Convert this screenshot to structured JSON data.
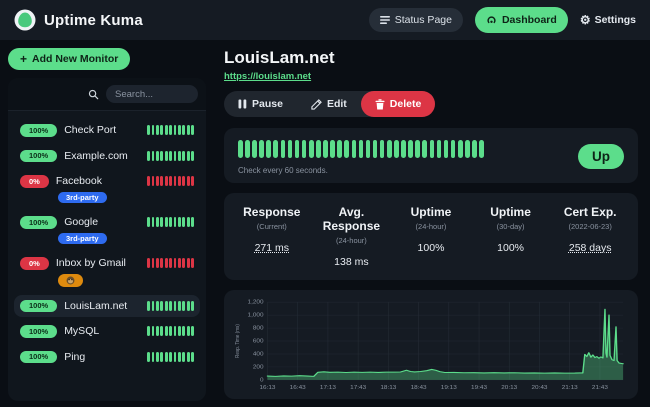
{
  "colors": {
    "green": "#5cdd8b",
    "red": "#dc3545",
    "blue": "#2e6bf0",
    "orange": "#de8a0e",
    "badge_dark_text": "#0e2417",
    "grid": "#242b35",
    "axis_text": "#8a93a0"
  },
  "topbar": {
    "app_name": "Uptime Kuma",
    "status_page_label": "Status Page",
    "dashboard_label": "Dashboard",
    "settings_label": "Settings"
  },
  "sidebar": {
    "add_monitor_label": "Add New Monitor",
    "search_placeholder": "Search...",
    "mini_beat_count": 11,
    "monitors": [
      {
        "name": "Check Port",
        "uptime": "100%",
        "status": "up",
        "tags": [],
        "selected": false
      },
      {
        "name": "Example.com",
        "uptime": "100%",
        "status": "up",
        "tags": [],
        "selected": false
      },
      {
        "name": "Facebook",
        "uptime": "0%",
        "status": "down",
        "tags": [
          {
            "label": "3rd-party",
            "color": "blue"
          }
        ],
        "selected": false
      },
      {
        "name": "Google",
        "uptime": "100%",
        "status": "up",
        "tags": [
          {
            "label": "3rd-party",
            "color": "blue"
          }
        ],
        "selected": false
      },
      {
        "name": "Inbox by Gmail",
        "uptime": "0%",
        "status": "down",
        "tags": [
          {
            "label": "",
            "icon": "monkey-emoji",
            "color": "orange"
          }
        ],
        "selected": false
      },
      {
        "name": "LouisLam.net",
        "uptime": "100%",
        "status": "up",
        "tags": [],
        "selected": true
      },
      {
        "name": "MySQL",
        "uptime": "100%",
        "status": "up",
        "tags": [],
        "selected": false
      },
      {
        "name": "Ping",
        "uptime": "100%",
        "status": "up",
        "tags": [],
        "selected": false
      }
    ]
  },
  "main": {
    "title": "LouisLam.net",
    "url": "https://louislam.net",
    "actions": {
      "pause": "Pause",
      "edit": "Edit",
      "delete": "Delete"
    },
    "heartbeat": {
      "beat_count": 35,
      "status_label": "Up",
      "note": "Check every 60 seconds."
    },
    "stats": [
      {
        "label": "Response",
        "sub": "(Current)",
        "value": "271 ms",
        "link": true
      },
      {
        "label": "Avg. Response",
        "sub": "(24-hour)",
        "value": "138 ms",
        "link": false
      },
      {
        "label": "Uptime",
        "sub": "(24-hour)",
        "value": "100%",
        "link": false
      },
      {
        "label": "Uptime",
        "sub": "(30-day)",
        "value": "100%",
        "link": false
      },
      {
        "label": "Cert Exp.",
        "sub": "(2022-06-23)",
        "value": "258 days",
        "link": true
      }
    ]
  },
  "chart_data": {
    "type": "area",
    "title": "",
    "xlabel": "",
    "ylabel": "Resp. Time (ms)",
    "ylim": [
      0,
      1200
    ],
    "ytick_values": [
      0,
      200,
      400,
      600,
      800,
      1000,
      1200
    ],
    "ytick_labels": [
      "0",
      "200",
      "400",
      "600",
      "800",
      "1,000",
      "1,200"
    ],
    "xtick_minutes": [
      0,
      30,
      60,
      90,
      120,
      150,
      180,
      210,
      240,
      270,
      300,
      330
    ],
    "xtick_labels": [
      "16:13",
      "16:43",
      "17:13",
      "17:43",
      "18:13",
      "18:43",
      "19:13",
      "19:43",
      "20:13",
      "20:43",
      "21:13",
      "21:43"
    ],
    "x_range_minutes": [
      0,
      353
    ],
    "grid": true,
    "series": [
      {
        "name": "Response (ms)",
        "points": [
          [
            0,
            60
          ],
          [
            8,
            55
          ],
          [
            16,
            62
          ],
          [
            24,
            58
          ],
          [
            32,
            65
          ],
          [
            40,
            60
          ],
          [
            46,
            55
          ],
          [
            50,
            118
          ],
          [
            56,
            125
          ],
          [
            62,
            118
          ],
          [
            70,
            120
          ],
          [
            78,
            114
          ],
          [
            86,
            120
          ],
          [
            94,
            116
          ],
          [
            102,
            120
          ],
          [
            110,
            115
          ],
          [
            118,
            120
          ],
          [
            126,
            120
          ],
          [
            132,
            122
          ],
          [
            138,
            148
          ],
          [
            142,
            130
          ],
          [
            146,
            124
          ],
          [
            152,
            130
          ],
          [
            158,
            142
          ],
          [
            163,
            162
          ],
          [
            167,
            150
          ],
          [
            171,
            128
          ],
          [
            176,
            114
          ],
          [
            185,
            115
          ],
          [
            195,
            110
          ],
          [
            205,
            112
          ],
          [
            215,
            108
          ],
          [
            225,
            112
          ],
          [
            235,
            108
          ],
          [
            245,
            110
          ],
          [
            255,
            106
          ],
          [
            265,
            108
          ],
          [
            275,
            104
          ],
          [
            285,
            108
          ],
          [
            295,
            104
          ],
          [
            305,
            106
          ],
          [
            310,
            108
          ],
          [
            313,
            108
          ],
          [
            315,
            395
          ],
          [
            317,
            360
          ],
          [
            319,
            420
          ],
          [
            321,
            350
          ],
          [
            323,
            385
          ],
          [
            325,
            345
          ],
          [
            327,
            360
          ],
          [
            329,
            335
          ],
          [
            331,
            355
          ],
          [
            333,
            340
          ],
          [
            335,
            1090
          ],
          [
            336,
            420
          ],
          [
            337,
            350
          ],
          [
            339,
            1000
          ],
          [
            340,
            380
          ],
          [
            342,
            310
          ],
          [
            344,
            300
          ],
          [
            346,
            820
          ],
          [
            347,
            300
          ],
          [
            349,
            260
          ],
          [
            353,
            250
          ]
        ]
      }
    ]
  }
}
